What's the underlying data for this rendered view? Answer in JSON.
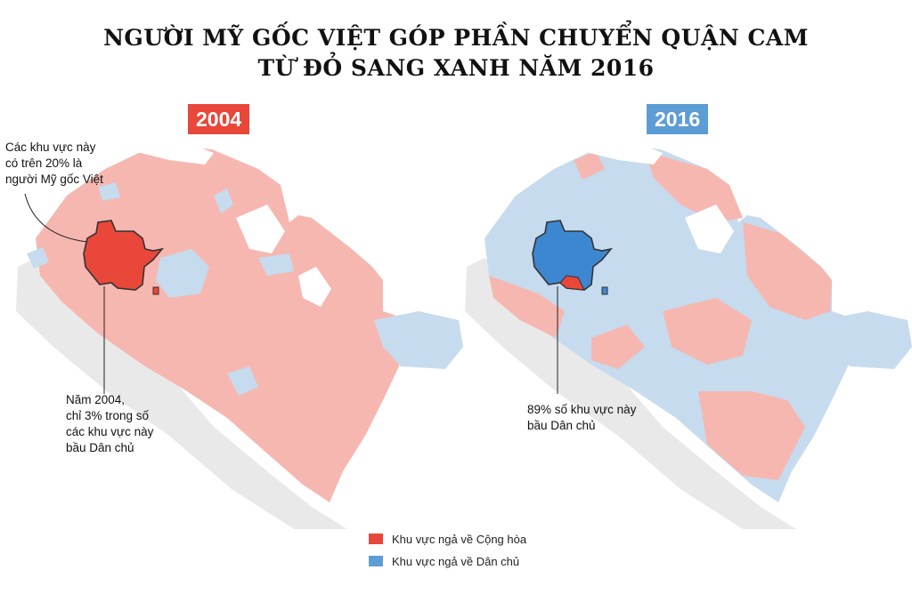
{
  "title": {
    "line1": "NGƯỜI MỸ GỐC VIỆT GÓP PHẦN CHUYỂN QUẬN CAM",
    "line2": "TỪ ĐỎ SANG XANH NĂM 2016"
  },
  "maps": [
    {
      "year": "2004",
      "badge_color": "#e8473a",
      "annotations": {
        "top": "Các khu vực này\ncó trên 20% là\nngười Mỹ gốc Việt",
        "bottom": "Năm 2004,\nchỉ 3% trong số\ncác khu vực này\nbầu Dân chủ"
      }
    },
    {
      "year": "2016",
      "badge_color": "#5d9dd6",
      "annotations": {
        "bottom": "89% số khu vực này\nbầu Dân chủ"
      }
    }
  ],
  "legend": [
    {
      "label": "Khu vực ngả về Cộng hòa",
      "color": "#e8473a"
    },
    {
      "label": "Khu vực ngả về Dân chủ",
      "color": "#5d9dd6"
    }
  ],
  "colors": {
    "republican_light": "#f6b7b0",
    "republican_dark": "#e8473a",
    "democrat_light": "#c6dbee",
    "democrat_dark": "#3d87d1",
    "outside": "#e9e9e9"
  }
}
